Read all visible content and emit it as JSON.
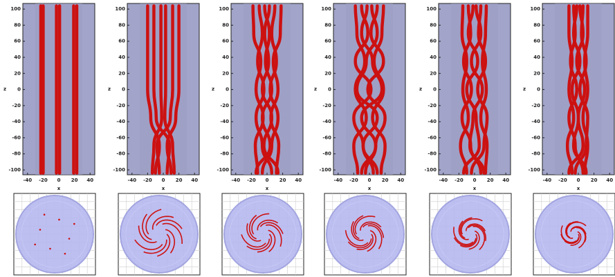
{
  "chart_data": [
    {
      "type": "line",
      "xlabel": "x",
      "ylabel": "z",
      "color": "#cc1111",
      "xlim": [
        -46,
        46
      ],
      "ylim": [
        -106,
        107
      ],
      "xticks": [
        -40,
        -20,
        0,
        20,
        40
      ],
      "yticks": [
        -100,
        -80,
        -60,
        -40,
        -20,
        0,
        20,
        40,
        60,
        80,
        100
      ],
      "z": [
        -104,
        -70,
        -35,
        0,
        35,
        70,
        104
      ],
      "series": [
        {
          "values": [
            -23,
            -23,
            -23,
            -23,
            -23,
            -23,
            -23
          ]
        },
        {
          "values": [
            -20,
            -20,
            -20,
            -20,
            -20,
            -20,
            -20
          ]
        },
        {
          "values": [
            -3,
            -3,
            -3,
            -3,
            -3,
            -3,
            -3
          ]
        },
        {
          "values": [
            1,
            1,
            1,
            1,
            1,
            1,
            1
          ]
        },
        {
          "values": [
            19,
            19,
            19,
            19,
            19,
            19,
            19
          ]
        },
        {
          "values": [
            23,
            23,
            23,
            23,
            23,
            23,
            23
          ]
        }
      ]
    },
    {
      "type": "line",
      "xlabel": "x",
      "ylabel": "z",
      "color": "#cc1111",
      "xlim": [
        -46,
        46
      ],
      "ylim": [
        -106,
        107
      ],
      "xticks": [
        -40,
        -20,
        0,
        20,
        40
      ],
      "yticks": [
        -100,
        -80,
        -60,
        -40,
        -20,
        0,
        20,
        40,
        60,
        80,
        100
      ],
      "z": [
        -104,
        -70,
        -35,
        0,
        35,
        70,
        104
      ],
      "series": [
        {
          "values": [
            -10,
            -5,
            -16,
            -20,
            -20,
            -20,
            -20
          ]
        },
        {
          "values": [
            5,
            8,
            -9,
            -12,
            -12,
            -12,
            -12
          ]
        },
        {
          "values": [
            -14,
            -12,
            -2,
            -3,
            -3,
            -3,
            -3
          ]
        },
        {
          "values": [
            14,
            12,
            2,
            3,
            3,
            3,
            3
          ]
        },
        {
          "values": [
            -5,
            -8,
            9,
            12,
            12,
            12,
            12
          ]
        },
        {
          "values": [
            10,
            5,
            16,
            20,
            20,
            20,
            20
          ]
        }
      ]
    },
    {
      "type": "line",
      "xlabel": "x",
      "ylabel": "z",
      "color": "#cc1111",
      "xlim": [
        -46,
        46
      ],
      "ylim": [
        -106,
        107
      ],
      "xticks": [
        -40,
        -20,
        0,
        20,
        40
      ],
      "yticks": [
        -100,
        -80,
        -60,
        -40,
        -20,
        0,
        20,
        40,
        60,
        80,
        100
      ],
      "z": [
        -104,
        -70,
        -35,
        0,
        35,
        70,
        104
      ],
      "series": [
        {
          "values": [
            -12,
            -15,
            -5,
            -14,
            -8,
            -17,
            -18
          ]
        },
        {
          "values": [
            6,
            -6,
            -14,
            -4,
            -12,
            -6,
            -10
          ]
        },
        {
          "values": [
            -14,
            4,
            -6,
            6,
            -2,
            3,
            -3
          ]
        },
        {
          "values": [
            14,
            -4,
            6,
            -6,
            2,
            -3,
            3
          ]
        },
        {
          "values": [
            -6,
            6,
            14,
            4,
            12,
            6,
            10
          ]
        },
        {
          "values": [
            12,
            15,
            5,
            14,
            8,
            17,
            18
          ]
        }
      ]
    },
    {
      "type": "line",
      "xlabel": "x",
      "ylabel": "z",
      "color": "#cc1111",
      "xlim": [
        -46,
        46
      ],
      "ylim": [
        -106,
        107
      ],
      "xticks": [
        -40,
        -20,
        0,
        20,
        40
      ],
      "yticks": [
        -100,
        -80,
        -60,
        -40,
        -20,
        0,
        20,
        40,
        60,
        80,
        100
      ],
      "z": [
        -104,
        -70,
        -35,
        0,
        35,
        70,
        104
      ],
      "series": [
        {
          "values": [
            -15,
            -20,
            -4,
            -18,
            -6,
            -16,
            -18
          ]
        },
        {
          "values": [
            5,
            -8,
            -20,
            2,
            -18,
            -2,
            -10
          ]
        },
        {
          "values": [
            -10,
            8,
            -10,
            16,
            4,
            -10,
            -3
          ]
        },
        {
          "values": [
            10,
            -8,
            10,
            -16,
            -4,
            10,
            3
          ]
        },
        {
          "values": [
            -5,
            8,
            20,
            -2,
            18,
            2,
            10
          ]
        },
        {
          "values": [
            15,
            20,
            4,
            18,
            6,
            16,
            18
          ]
        }
      ]
    },
    {
      "type": "line",
      "xlabel": "x",
      "ylabel": "z",
      "color": "#cc1111",
      "xlim": [
        -46,
        46
      ],
      "ylim": [
        -106,
        107
      ],
      "xticks": [
        -40,
        -20,
        0,
        20,
        40
      ],
      "yticks": [
        -100,
        -80,
        -60,
        -40,
        -20,
        0,
        20,
        40,
        60,
        80,
        100
      ],
      "z": [
        -104,
        -70,
        -35,
        0,
        35,
        70,
        104
      ],
      "series": [
        {
          "values": [
            -10,
            -18,
            -8,
            -15,
            -10,
            -16,
            -15
          ]
        },
        {
          "values": [
            8,
            -5,
            -16,
            -4,
            -14,
            -5,
            -8
          ]
        },
        {
          "values": [
            -14,
            6,
            2,
            -10,
            4,
            -8,
            -2
          ]
        },
        {
          "values": [
            12,
            -6,
            -2,
            10,
            -4,
            8,
            2
          ]
        },
        {
          "values": [
            -4,
            12,
            16,
            4,
            14,
            5,
            8
          ]
        },
        {
          "values": [
            14,
            16,
            8,
            15,
            10,
            14,
            15
          ]
        }
      ]
    },
    {
      "type": "line",
      "xlabel": "x",
      "ylabel": "z",
      "color": "#cc1111",
      "xlim": [
        -46,
        46
      ],
      "ylim": [
        -106,
        107
      ],
      "xticks": [
        -40,
        -20,
        0,
        20,
        40
      ],
      "yticks": [
        -100,
        -80,
        -60,
        -40,
        -20,
        0,
        20,
        40,
        60,
        80,
        100
      ],
      "z": [
        -104,
        -70,
        -35,
        0,
        35,
        70,
        104
      ],
      "series": [
        {
          "values": [
            -8,
            -14,
            -6,
            -12,
            -8,
            -12,
            -12
          ]
        },
        {
          "values": [
            6,
            -4,
            -12,
            -2,
            -10,
            -4,
            -6
          ]
        },
        {
          "values": [
            -12,
            6,
            0,
            -8,
            2,
            -6,
            -2
          ]
        },
        {
          "values": [
            10,
            -6,
            0,
            8,
            -2,
            6,
            2
          ]
        },
        {
          "values": [
            -4,
            10,
            12,
            2,
            10,
            4,
            6
          ]
        },
        {
          "values": [
            8,
            12,
            6,
            12,
            8,
            12,
            12
          ]
        }
      ]
    }
  ]
}
